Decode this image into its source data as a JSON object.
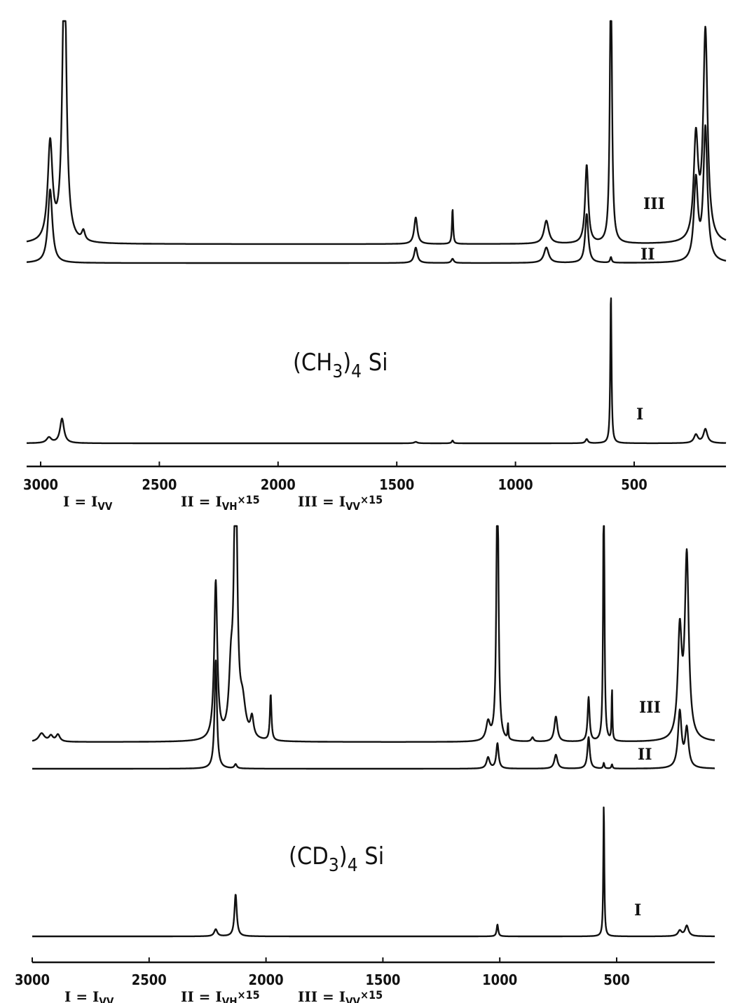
{
  "chart_data": [
    {
      "type": "line",
      "title": "(CH3)4Si",
      "title_parts": {
        "a": "(CH",
        "sub": "3",
        "b": ")",
        "sub2": "4",
        "c": " Si"
      },
      "xlabel": "",
      "ylabel": "",
      "xlim": [
        3060,
        115
      ],
      "x_reversed": true,
      "x_ticks": [
        3000,
        2500,
        2000,
        1500,
        1000,
        500
      ],
      "grid": false,
      "legend": [
        {
          "label": "I",
          "text": "= I",
          "sub": "VV",
          "suffix": ""
        },
        {
          "label": "II",
          "text": "= I",
          "sub": "VH",
          "suffix": "×15"
        },
        {
          "label": "III",
          "text": "= I",
          "sub": "VV",
          "suffix": "×15"
        }
      ],
      "series_note": "peaks: [wavenumber cm-1, relative intensity (a.u.), half-width cm-1]; values above the panel are off-scale",
      "series": [
        {
          "name": "III",
          "peaks": [
            [
              2960,
              140,
              12
            ],
            [
              2900,
              420,
              10
            ],
            [
              2820,
              14,
              8
            ],
            [
              1420,
              38,
              8
            ],
            [
              1265,
              50,
              3
            ],
            [
              870,
              33,
              12
            ],
            [
              700,
              112,
              8
            ],
            [
              598,
              420,
              5
            ],
            [
              240,
              145,
              11
            ],
            [
              200,
              300,
              11
            ]
          ]
        },
        {
          "name": "II",
          "peaks": [
            [
              2960,
              105,
              11
            ],
            [
              1420,
              22,
              8
            ],
            [
              1265,
              6,
              6
            ],
            [
              870,
              22,
              12
            ],
            [
              700,
              70,
              8
            ],
            [
              598,
              8,
              4
            ],
            [
              240,
              115,
              10
            ],
            [
              200,
              190,
              10
            ]
          ]
        },
        {
          "name": "I",
          "peaks": [
            [
              2965,
              8,
              12
            ],
            [
              2910,
              35,
              10
            ],
            [
              1420,
              2,
              8
            ],
            [
              1265,
              4,
              4
            ],
            [
              700,
              6,
              6
            ],
            [
              598,
              215,
              3
            ],
            [
              240,
              12,
              10
            ],
            [
              200,
              20,
              10
            ]
          ]
        }
      ]
    },
    {
      "type": "line",
      "title": "(CD3)4Si",
      "title_parts": {
        "a": "(CD",
        "sub": "3",
        "b": ")",
        "sub2": "4",
        "c": " Si"
      },
      "xlabel": "",
      "ylabel": "",
      "xlim": [
        3000,
        80
      ],
      "x_reversed": true,
      "x_ticks": [
        3000,
        2500,
        2000,
        1500,
        1000,
        500
      ],
      "grid": false,
      "legend": [
        {
          "label": "I",
          "text": "= I",
          "sub": "VV",
          "suffix": ""
        },
        {
          "label": "II",
          "text": "= I",
          "sub": "VH",
          "suffix": "×15"
        },
        {
          "label": "III",
          "text": "= I",
          "sub": "VV",
          "suffix": "×15"
        }
      ],
      "series_note": "peaks: [wavenumber cm-1, relative intensity (a.u.), half-width cm-1]; values above the panel are off-scale",
      "series": [
        {
          "name": "III",
          "peaks": [
            [
              2960,
              12,
              15
            ],
            [
              2920,
              8,
              10
            ],
            [
              2890,
              10,
              10
            ],
            [
              2215,
              225,
              8
            ],
            [
              2150,
              80,
              10
            ],
            [
              2130,
              420,
              8
            ],
            [
              2100,
              45,
              15
            ],
            [
              2060,
              28,
              8
            ],
            [
              1980,
              66,
              4
            ],
            [
              1050,
              26,
              10
            ],
            [
              1010,
              420,
              5
            ],
            [
              965,
              22,
              2
            ],
            [
              860,
              6,
              6
            ],
            [
              760,
              36,
              8
            ],
            [
              620,
              63,
              5
            ],
            [
              555,
              420,
              3
            ],
            [
              520,
              75,
              2
            ],
            [
              230,
              150,
              10
            ],
            [
              200,
              260,
              10
            ]
          ]
        },
        {
          "name": "II",
          "peaks": [
            [
              2215,
              155,
              6
            ],
            [
              2130,
              6,
              6
            ],
            [
              1050,
              16,
              8
            ],
            [
              1010,
              36,
              6
            ],
            [
              760,
              20,
              8
            ],
            [
              620,
              45,
              6
            ],
            [
              555,
              8,
              3
            ],
            [
              520,
              6,
              3
            ],
            [
              230,
              80,
              9
            ],
            [
              200,
              55,
              9
            ]
          ]
        },
        {
          "name": "I",
          "peaks": [
            [
              2215,
              10,
              8
            ],
            [
              2130,
              60,
              6
            ],
            [
              1010,
              17,
              4
            ],
            [
              555,
              190,
              2.5
            ],
            [
              230,
              8,
              9
            ],
            [
              200,
              15,
              9
            ]
          ]
        }
      ]
    }
  ]
}
